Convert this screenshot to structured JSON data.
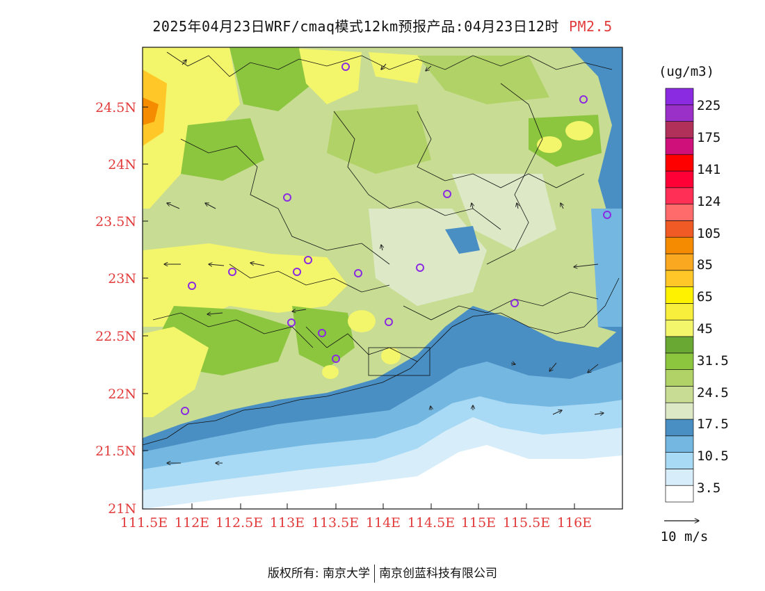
{
  "title": {
    "main": "2025年04月23日WRF/cmaq模式12km预报产品:04月23日12时",
    "species": "PM2.5"
  },
  "map": {
    "lat_labels": [
      "24.5N",
      "24N",
      "23.5N",
      "23N",
      "22.5N",
      "22N",
      "21.5N",
      "21N"
    ],
    "lon_labels": [
      "111.5E",
      "112E",
      "112.5E",
      "113E",
      "113.5E",
      "114E",
      "114.5E",
      "115E",
      "115.5E",
      "116E"
    ],
    "lat_range": [
      21,
      24.95
    ],
    "lon_range": [
      111.5,
      116.55
    ]
  },
  "colorbar": {
    "unit": "(ug/m3)",
    "labels": [
      "225",
      "175",
      "141",
      "124",
      "105",
      "85",
      "65",
      "45",
      "31.5",
      "24.5",
      "17.5",
      "10.5",
      "3.5"
    ],
    "colors": [
      "#ffffff",
      "#d7eefa",
      "#a8d9f5",
      "#74b7e0",
      "#4a8fc4",
      "#dde9c6",
      "#c8dc94",
      "#b0d266",
      "#8cc63f",
      "#6aa834",
      "#f3f56a",
      "#f7ef3c",
      "#fff200",
      "#ffc828",
      "#f9a81f",
      "#f58b00",
      "#f05a24",
      "#ff6a6a",
      "#ff2f55",
      "#ff0036",
      "#ff0000",
      "#d0107a",
      "#b0305a",
      "#9b30c8",
      "#8a2be2"
    ]
  },
  "wind_legend": {
    "label": "10 m/s"
  },
  "footer": {
    "copyright": "版权所有: 南京大学",
    "company": "南京创蓝科技有限公司"
  }
}
